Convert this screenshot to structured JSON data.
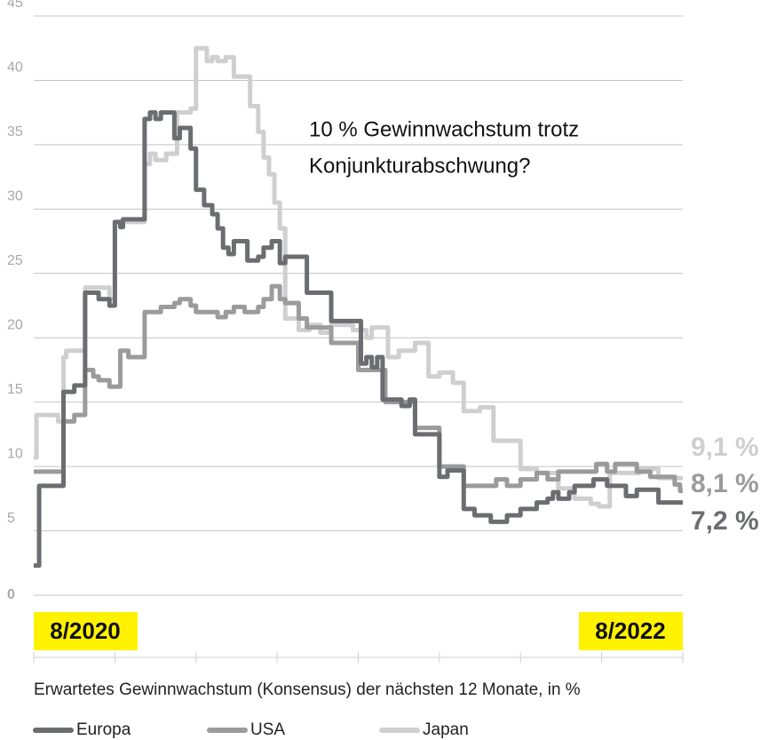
{
  "chart_data": {
    "type": "line",
    "title": "Erwartetes Gewinnwachstum (Konsensus) der nächsten 12 Monate, in %",
    "annotation": [
      "10 % Gewinnwachstum trotz",
      "Konjunkturabschwung?"
    ],
    "x_start_label": "8/2020",
    "x_end_label": "8/2022",
    "xlim": [
      0,
      24
    ],
    "xticks": [
      0,
      3,
      6,
      9,
      12,
      15,
      18,
      21,
      24
    ],
    "ylim": [
      0,
      45
    ],
    "yticks": [
      0,
      5,
      10,
      15,
      20,
      25,
      30,
      35,
      40,
      45
    ],
    "grid": true,
    "step": true,
    "series": [
      {
        "name": "Japan",
        "color": "#cfcfd0",
        "end_label": "9,1 %",
        "x": [
          0,
          0.1,
          0.9,
          1.1,
          1.2,
          1.9,
          2.8,
          3.0,
          4.1,
          4.3,
          4.5,
          4.9,
          5.3,
          5.8,
          6.0,
          6.4,
          6.6,
          6.8,
          7.1,
          7.4,
          8.0,
          8.3,
          8.5,
          8.7,
          8.9,
          9.1,
          9.3,
          9.8,
          10.2,
          10.6,
          11.0,
          11.8,
          12.3,
          12.5,
          13.1,
          13.5,
          14.1,
          14.6,
          15.0,
          15.5,
          15.9,
          16.5,
          17.0,
          18.0,
          18.6,
          19.4,
          20.0,
          20.6,
          20.9,
          21.3,
          22.4,
          23.1,
          24.0
        ],
        "values": [
          10.7,
          14.0,
          13.5,
          18.5,
          19.0,
          23.9,
          23.0,
          29.0,
          33.5,
          34.3,
          33.8,
          34.3,
          37.5,
          37.8,
          42.5,
          41.5,
          41.8,
          41.5,
          41.8,
          40.3,
          38.0,
          36.0,
          34.0,
          32.7,
          30.5,
          28.5,
          21.5,
          20.6,
          21.0,
          20.4,
          21.0,
          20.6,
          20.0,
          20.8,
          18.5,
          19.0,
          19.6,
          17.0,
          17.3,
          16.5,
          14.3,
          14.6,
          12.0,
          9.8,
          9.5,
          8.3,
          7.5,
          7.1,
          6.9,
          9.5,
          9.8,
          9.1,
          9.1
        ]
      },
      {
        "name": "USA",
        "color": "#9b9b9d",
        "end_label": "8,1 %",
        "x": [
          0,
          1.1,
          1.5,
          1.9,
          2.2,
          2.4,
          2.8,
          3.2,
          3.5,
          4.1,
          4.7,
          5.2,
          5.4,
          5.8,
          6.0,
          6.8,
          7.1,
          7.4,
          7.8,
          8.3,
          8.5,
          8.8,
          9.1,
          9.3,
          9.8,
          10.1,
          11.0,
          12.0,
          13.0,
          14.1,
          15.0,
          15.9,
          17.1,
          17.5,
          18.0,
          18.6,
          19.0,
          19.4,
          20.8,
          21.2,
          21.5,
          22.3,
          22.8,
          23.7,
          23.9,
          24.0
        ],
        "values": [
          9.6,
          13.5,
          14.0,
          17.5,
          17.0,
          16.7,
          16.2,
          19.0,
          18.5,
          22.0,
          22.4,
          22.7,
          23.0,
          22.5,
          22.0,
          21.6,
          22.0,
          22.4,
          22.0,
          22.4,
          23.0,
          24.0,
          23.0,
          22.7,
          21.5,
          20.8,
          19.6,
          17.5,
          15.0,
          13.0,
          10.0,
          8.5,
          9.0,
          8.5,
          9.0,
          9.5,
          9.0,
          9.6,
          10.2,
          9.6,
          10.2,
          9.6,
          9.2,
          8.6,
          8.1,
          8.1
        ]
      },
      {
        "name": "Europa",
        "color": "#6c6d70",
        "end_label": "7,2 %",
        "x": [
          0,
          0.2,
          1.1,
          1.5,
          1.9,
          2.4,
          2.8,
          3.0,
          3.2,
          3.3,
          4.1,
          4.3,
          4.5,
          4.7,
          5.2,
          5.4,
          5.8,
          6.0,
          6.3,
          6.6,
          6.8,
          7.0,
          7.2,
          7.4,
          7.9,
          8.3,
          8.5,
          8.8,
          9.1,
          9.3,
          10.1,
          11.0,
          12.1,
          12.3,
          12.5,
          12.7,
          12.9,
          13.6,
          13.9,
          14.1,
          15.0,
          15.3,
          15.9,
          16.3,
          16.9,
          17.5,
          18.0,
          18.6,
          19.0,
          19.2,
          19.4,
          19.8,
          20.0,
          20.7,
          21.2,
          21.9,
          22.3,
          23.1,
          24.0
        ],
        "values": [
          2.3,
          8.5,
          15.8,
          16.3,
          23.5,
          23.0,
          22.5,
          29.0,
          28.6,
          29.2,
          37.0,
          37.5,
          37.0,
          37.5,
          35.5,
          36.3,
          34.7,
          31.5,
          30.3,
          29.6,
          28.5,
          27.0,
          26.5,
          27.5,
          26.0,
          26.3,
          27.0,
          27.5,
          25.8,
          26.3,
          23.5,
          21.3,
          18.0,
          18.5,
          17.7,
          18.5,
          15.2,
          14.7,
          15.2,
          12.5,
          9.2,
          9.7,
          6.7,
          6.2,
          5.7,
          6.2,
          6.7,
          7.2,
          7.5,
          8.0,
          7.5,
          8.0,
          8.5,
          9.0,
          8.5,
          7.7,
          8.2,
          7.2,
          7.2
        ]
      }
    ]
  }
}
